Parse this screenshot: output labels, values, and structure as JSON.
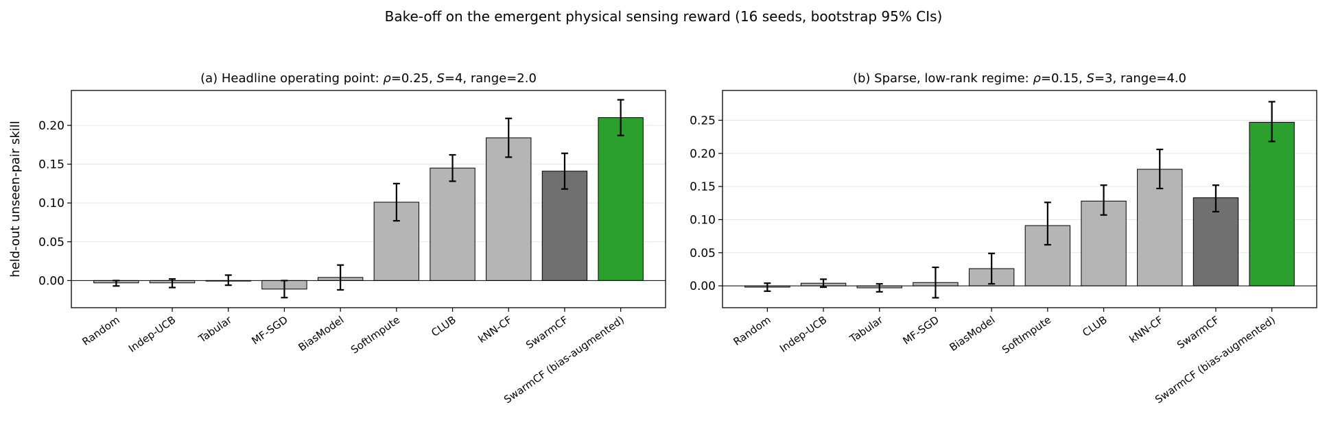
{
  "figure": {
    "title": "Bake-off on the emergent physical sensing reward (16 seeds, bootstrap 95% CIs)",
    "colors": {
      "baseline_bar": "#b5b5b5",
      "swarmcf_bar": "#707070",
      "augmented_bar": "#2ca02c",
      "edge": "#000000",
      "grid": "#e6e6e6"
    }
  },
  "chart_data": [
    {
      "type": "bar",
      "title": "(a) Headline operating point:  ρ=0.25, S=4, range=2.0",
      "title_parts": [
        {
          "t": "(a) Headline operating point:  ",
          "italic": false
        },
        {
          "t": "ρ",
          "italic": true
        },
        {
          "t": "=0.25, ",
          "italic": false
        },
        {
          "t": "S",
          "italic": true
        },
        {
          "t": "=4, range=2.0",
          "italic": false
        }
      ],
      "ylabel": "held-out unseen-pair skill",
      "xlabel": "",
      "categories": [
        "Random",
        "Indep-UCB",
        "Tabular",
        "MF-SGD",
        "BiasModel",
        "SoftImpute",
        "CLUB",
        "kNN-CF",
        "SwarmCF",
        "SwarmCF (bias-augmented)"
      ],
      "values": [
        -0.003,
        -0.003,
        0.0,
        -0.011,
        0.004,
        0.101,
        0.145,
        0.184,
        0.141,
        0.21
      ],
      "ci_low": [
        -0.007,
        -0.009,
        -0.006,
        -0.022,
        -0.012,
        0.077,
        0.128,
        0.159,
        0.118,
        0.187
      ],
      "ci_high": [
        0.0,
        0.002,
        0.007,
        0.0,
        0.02,
        0.125,
        0.162,
        0.209,
        0.164,
        0.233
      ],
      "bar_color_keys": [
        "baseline_bar",
        "baseline_bar",
        "baseline_bar",
        "baseline_bar",
        "baseline_bar",
        "baseline_bar",
        "baseline_bar",
        "baseline_bar",
        "swarmcf_bar",
        "augmented_bar"
      ],
      "ylim": [
        -0.035,
        0.245
      ],
      "yticks": [
        0.0,
        0.05,
        0.1,
        0.15,
        0.2
      ],
      "ytick_labels": [
        "0.00",
        "0.05",
        "0.10",
        "0.15",
        "0.20"
      ],
      "grid": "y",
      "zero_line": true
    },
    {
      "type": "bar",
      "title": "(b) Sparse, low-rank regime:  ρ=0.15, S=3, range=4.0",
      "title_parts": [
        {
          "t": "(b) Sparse, low-rank regime:  ",
          "italic": false
        },
        {
          "t": "ρ",
          "italic": true
        },
        {
          "t": "=0.15, ",
          "italic": false
        },
        {
          "t": "S",
          "italic": true
        },
        {
          "t": "=3, range=4.0",
          "italic": false
        }
      ],
      "ylabel": "",
      "xlabel": "",
      "categories": [
        "Random",
        "Indep-UCB",
        "Tabular",
        "MF-SGD",
        "BiasModel",
        "SoftImpute",
        "CLUB",
        "kNN-CF",
        "SwarmCF",
        "SwarmCF (bias-augmented)"
      ],
      "values": [
        -0.002,
        0.004,
        -0.003,
        0.005,
        0.026,
        0.091,
        0.128,
        0.176,
        0.133,
        0.247
      ],
      "ci_low": [
        -0.008,
        -0.002,
        -0.009,
        -0.018,
        0.003,
        0.062,
        0.107,
        0.147,
        0.112,
        0.218
      ],
      "ci_high": [
        0.004,
        0.01,
        0.003,
        0.028,
        0.049,
        0.126,
        0.152,
        0.206,
        0.152,
        0.278
      ],
      "bar_color_keys": [
        "baseline_bar",
        "baseline_bar",
        "baseline_bar",
        "baseline_bar",
        "baseline_bar",
        "baseline_bar",
        "baseline_bar",
        "baseline_bar",
        "swarmcf_bar",
        "augmented_bar"
      ],
      "ylim": [
        -0.033,
        0.295
      ],
      "yticks": [
        0.0,
        0.05,
        0.1,
        0.15,
        0.2,
        0.25
      ],
      "ytick_labels": [
        "0.00",
        "0.05",
        "0.10",
        "0.15",
        "0.20",
        "0.25"
      ],
      "grid": "y",
      "zero_line": true
    }
  ]
}
